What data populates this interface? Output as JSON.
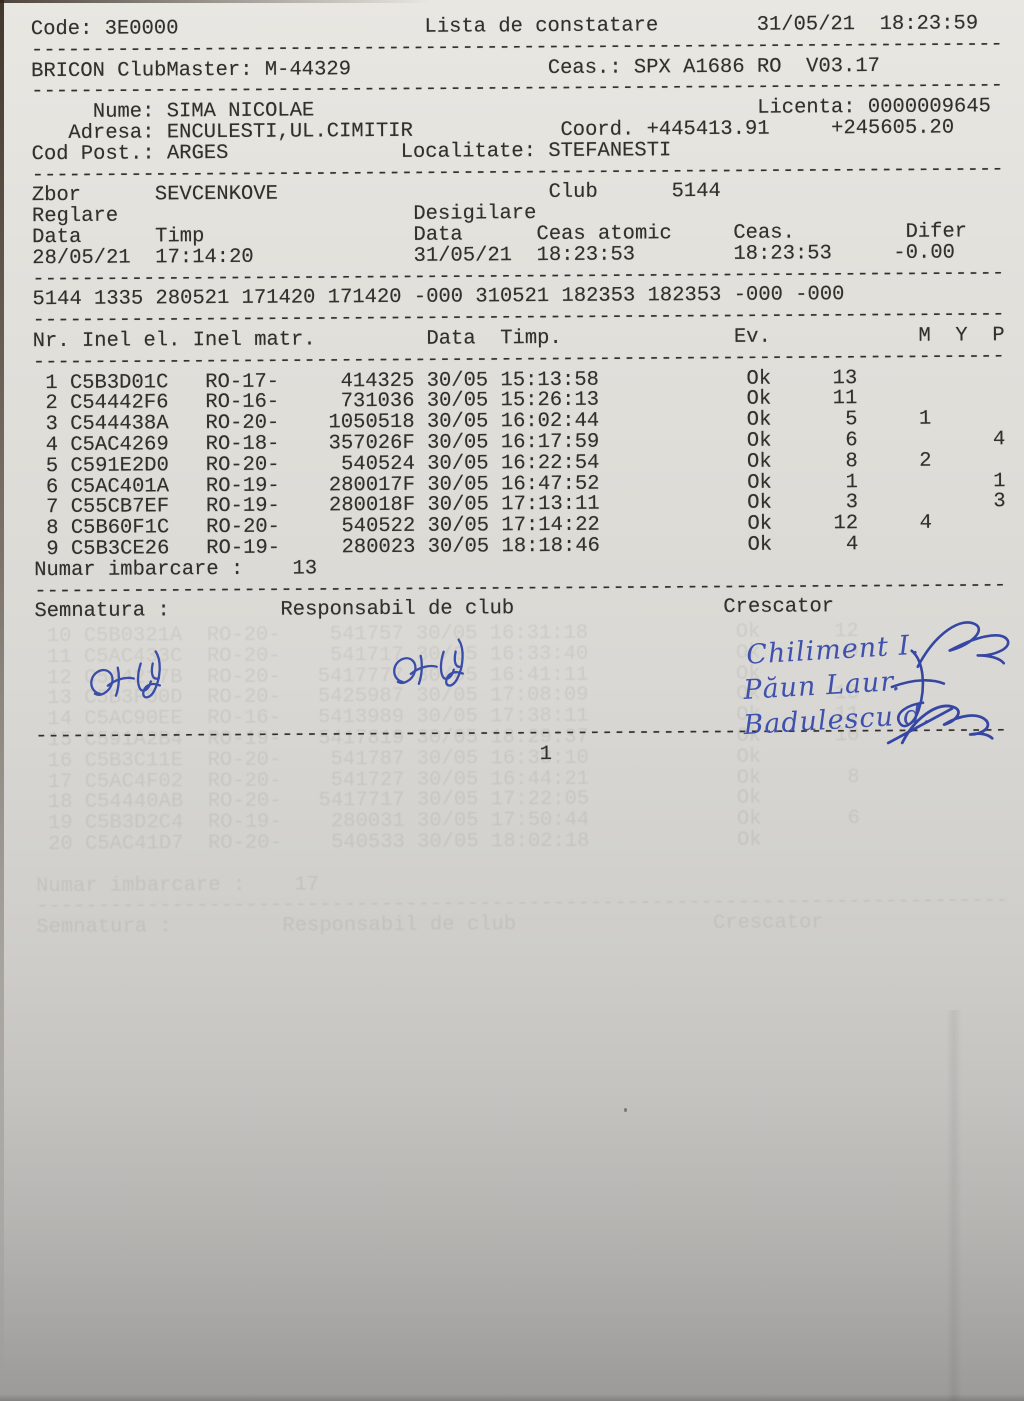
{
  "report": {
    "header": {
      "code_label": "Code:",
      "code": "3E0000",
      "title": "Lista de constatare",
      "date": "31/05/21",
      "time": "18:23:59",
      "device_label": "BRICON ClubMaster:",
      "device": "M-44329",
      "clock_label": "Ceas.:",
      "clock": "SPX A1686 RO  V03.17"
    },
    "owner": {
      "name_label": "Nume:",
      "name": "SIMA NICOLAE",
      "licence_label": "Licenta:",
      "licence": "0000009645",
      "address_label": "Adresa:",
      "address": "ENCULESTI,UL.CIMITIR",
      "coord_label": "Coord.",
      "coord_lat": "+445413.91",
      "coord_lon": "+245605.20",
      "postcode_label": "Cod Post.:",
      "postcode": "ARGES",
      "locality_label": "Localitate:",
      "locality": "STEFANESTI"
    },
    "flight": {
      "race_label": "Zbor",
      "race": "SEVCENKOVE",
      "club_label": "Club",
      "club": "5144",
      "set_label": "Reglare",
      "unseal_label": "Desigilare",
      "data_label": "Data",
      "timp_label": "Timp",
      "ceas_atomic_label": "Ceas atomic",
      "ceas_label": "Ceas.",
      "difer_label": "Difer",
      "set_date": "28/05/21",
      "set_time": "17:14:20",
      "unseal_date": "31/05/21",
      "atomic_time": "18:23:53",
      "clock_time": "18:23:53",
      "differ": "-0.00"
    },
    "control_line": "5144 1335 280521 171420 171420 -000 310521 182353 182353 -000 -000",
    "table": {
      "headers": [
        "Nr.",
        "Inel el.",
        "Inel matr.",
        "Data",
        "Timp.",
        "Ev.",
        "M",
        "Y",
        "P"
      ],
      "rows": [
        {
          "nr": "1",
          "inel_el": "C5B3D01C",
          "seria": "RO-17-",
          "inel_matr": "414325",
          "data": "30/05",
          "timp": "15:13:58",
          "ev": "Ok",
          "count": "13",
          "m": "",
          "y": "",
          "p": ""
        },
        {
          "nr": "2",
          "inel_el": "C54442F6",
          "seria": "RO-16-",
          "inel_matr": "731036",
          "data": "30/05",
          "timp": "15:26:13",
          "ev": "Ok",
          "count": "11",
          "m": "",
          "y": "",
          "p": ""
        },
        {
          "nr": "3",
          "inel_el": "C544438A",
          "seria": "RO-20-",
          "inel_matr": "1050518",
          "data": "30/05",
          "timp": "16:02:44",
          "ev": "Ok",
          "count": "5",
          "m": "1",
          "y": "",
          "p": ""
        },
        {
          "nr": "4",
          "inel_el": "C5AC4269",
          "seria": "RO-18-",
          "inel_matr": "357026F",
          "data": "30/05",
          "timp": "16:17:59",
          "ev": "Ok",
          "count": "6",
          "m": "",
          "y": "",
          "p": "4"
        },
        {
          "nr": "5",
          "inel_el": "C591E2D0",
          "seria": "RO-20-",
          "inel_matr": "540524",
          "data": "30/05",
          "timp": "16:22:54",
          "ev": "Ok",
          "count": "8",
          "m": "2",
          "y": "",
          "p": ""
        },
        {
          "nr": "6",
          "inel_el": "C5AC401A",
          "seria": "RO-19-",
          "inel_matr": "280017F",
          "data": "30/05",
          "timp": "16:47:52",
          "ev": "Ok",
          "count": "1",
          "m": "",
          "y": "",
          "p": "1"
        },
        {
          "nr": "7",
          "inel_el": "C55CB7EF",
          "seria": "RO-19-",
          "inel_matr": "280018F",
          "data": "30/05",
          "timp": "17:13:11",
          "ev": "Ok",
          "count": "3",
          "m": "",
          "y": "",
          "p": "3"
        },
        {
          "nr": "8",
          "inel_el": "C5B60F1C",
          "seria": "RO-20-",
          "inel_matr": "540522",
          "data": "30/05",
          "timp": "17:14:22",
          "ev": "Ok",
          "count": "12",
          "m": "4",
          "y": "",
          "p": ""
        },
        {
          "nr": "9",
          "inel_el": "C5B3CE26",
          "seria": "RO-19-",
          "inel_matr": "280023",
          "data": "30/05",
          "timp": "18:18:46",
          "ev": "Ok",
          "count": "4",
          "m": "",
          "y": "",
          "p": ""
        }
      ]
    },
    "boarding": {
      "label": "Numar imbarcare :",
      "value": "13"
    },
    "footer": {
      "signature_label": "Semnatura :",
      "club_official_label": "Responsabil de club",
      "breeder_label": "Crescator"
    },
    "page_number": "1",
    "handwriting": {
      "ink_color": "#3a4da9",
      "names": [
        "Chiliment I.",
        "Păun Laur.",
        "Badulescu d."
      ]
    }
  },
  "ghost": {
    "lines": [
      " 10 C5B0321A  RO-20-    541757 30/05 16:31:18            Ok      12",
      " 11 C5AC433C  RO-20-    541717 30/05 16:33:40            Ok       9",
      " 12 C544217B  RO-20-   5417777 30/05 16:41:11            Ok",
      " 13 C5B3F00D  RO-20-   5425987 30/05 17:08:09            Ok      15",
      " 14 C5AC90EE  RO-16-   5413989 30/05 17:38:11            Ok      11",
      " 15 C591A2B4  RO-19-   5417819 30/05 18:29:37            Ok      10",
      " 16 C5B3C11E  RO-20-    541787 30/05 16:38:10            Ok",
      " 17 C5AC4F02  RO-20-    541727 30/05 16:44:21            Ok       8",
      " 18 C54440AB  RO-20-   5417717 30/05 17:22:05            Ok",
      " 19 C5B3D2C4  RO-19-    280031 30/05 17:50:44            Ok       6",
      " 20 C5AC41D7  RO-20-    540533 30/05 18:02:18            Ok",
      "",
      "Numar imbarcare :    17",
      "-------------------------------------------------------------------------------",
      "Semnatura :         Responsabil de club                Crescator"
    ]
  },
  "colors": {
    "paper_top": "#e9e7e2",
    "paper_bottom": "#9b9a98",
    "print": "#31302c",
    "ink": "#3a4da9"
  }
}
